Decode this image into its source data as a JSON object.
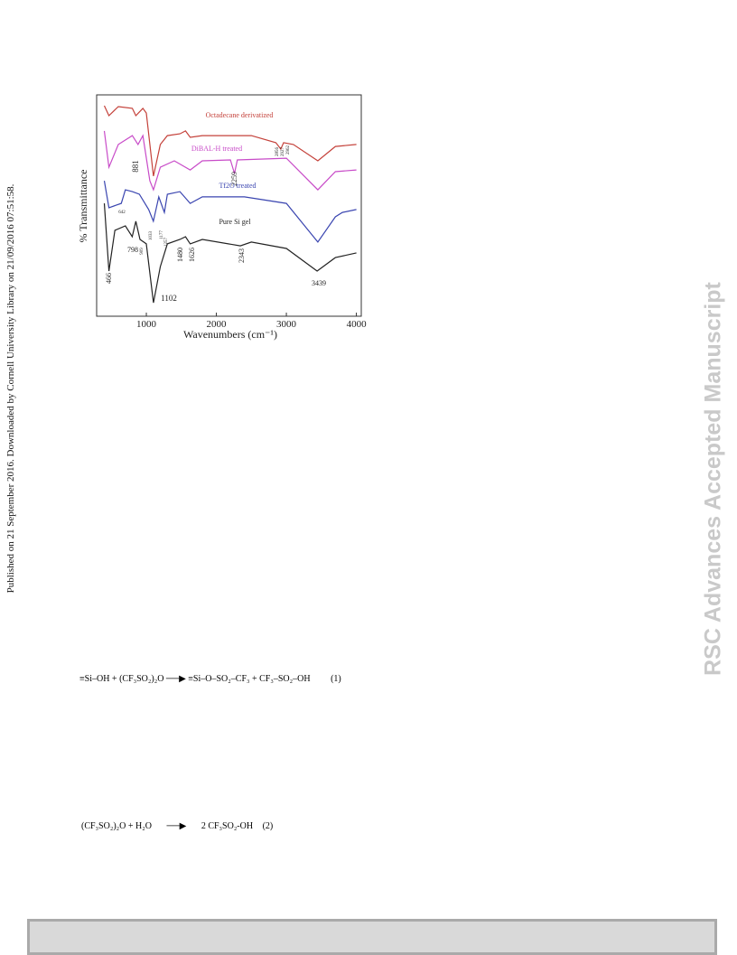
{
  "side_note": "Published on 21 September 2016. Downloaded by Cornell University Library on 21/09/2016 07:51:58.",
  "watermark": "RSC Advances Accepted Manuscript",
  "chart_data": {
    "type": "line",
    "ylabel": "% Transmittance",
    "xlabel": "Wavenumbers (cm⁻¹)",
    "xlim": [
      290,
      4070
    ],
    "xticks": [
      1000,
      2000,
      3000,
      4000
    ],
    "ylim": [
      0,
      100
    ],
    "series": [
      {
        "name": "Octadecane derivatized",
        "color": "#c4413a",
        "x": [
          400,
          466,
          600,
          800,
          850,
          950,
          1000,
          1102,
          1200,
          1300,
          1480,
          1560,
          1626,
          1800,
          2500,
          2850,
          2920,
          2960,
          3100,
          3450,
          3700,
          4000
        ],
        "values": [
          95.1,
          90.6,
          94.7,
          93.9,
          90.6,
          93.9,
          91.8,
          63.3,
          77.6,
          81.6,
          82.4,
          83.7,
          80.8,
          81.6,
          81.6,
          78.4,
          75.5,
          78.4,
          77.6,
          70.2,
          76.7,
          77.6
        ]
      },
      {
        "name": "DiBAL-H treated",
        "color": "#c84bc8",
        "x": [
          400,
          466,
          600,
          800,
          881,
          950,
          1050,
          1102,
          1200,
          1400,
          1626,
          1800,
          2200,
          2259,
          2300,
          3000,
          3450,
          3700,
          4000
        ],
        "values": [
          83.7,
          67.3,
          77.6,
          81.6,
          77.6,
          81.6,
          61.2,
          57.1,
          67.3,
          70.2,
          66.1,
          70.2,
          70.6,
          64.5,
          70.6,
          71.4,
          57.1,
          65.3,
          66.1
        ]
      },
      {
        "name": "Tf2O treated",
        "color": "#3a45b0",
        "x": [
          400,
          466,
          642,
          700,
          800,
          900,
          1033,
          1100,
          1177,
          1257,
          1300,
          1480,
          1626,
          1800,
          2400,
          3000,
          3450,
          3700,
          3800,
          4000
        ],
        "values": [
          61.2,
          49,
          51,
          57.1,
          56.3,
          55.1,
          48.2,
          42.9,
          53.9,
          46.9,
          55.1,
          56.3,
          51,
          53.9,
          53.9,
          51,
          33.5,
          44.9,
          46.9,
          48.2
        ]
      },
      {
        "name": "Pure Si gel",
        "color": "#222222",
        "x": [
          400,
          466,
          550,
          700,
          798,
          850,
          909,
          1000,
          1102,
          1200,
          1300,
          1480,
          1560,
          1626,
          1800,
          2343,
          2500,
          3000,
          3439,
          3700,
          4000
        ],
        "values": [
          51,
          20.4,
          38.8,
          40.8,
          35.9,
          42.9,
          34.7,
          32.7,
          6.1,
          22.4,
          32.7,
          34.7,
          35.9,
          32.7,
          34.7,
          31.8,
          33.5,
          30.6,
          20.4,
          26.5,
          28.6
        ]
      }
    ],
    "annotations": [
      "466",
      "798",
      "909",
      "1102",
      "1480",
      "1626",
      "2343",
      "3439",
      "642",
      "1033",
      "1177",
      "1257",
      "881",
      "2259",
      "2856",
      "2927",
      "2962"
    ]
  },
  "equations": [
    {
      "left": "≡Si–OH + (CF₃SO₂)₂O",
      "right": "≡Si–O–SO₂–CF₃ + CF₃–SO₂–OH",
      "number": "(1)"
    },
    {
      "left": "(CF₃SO₂)₂O + H₂O",
      "right": "2 CF₃SO₂-OH",
      "number": "(2)"
    }
  ]
}
